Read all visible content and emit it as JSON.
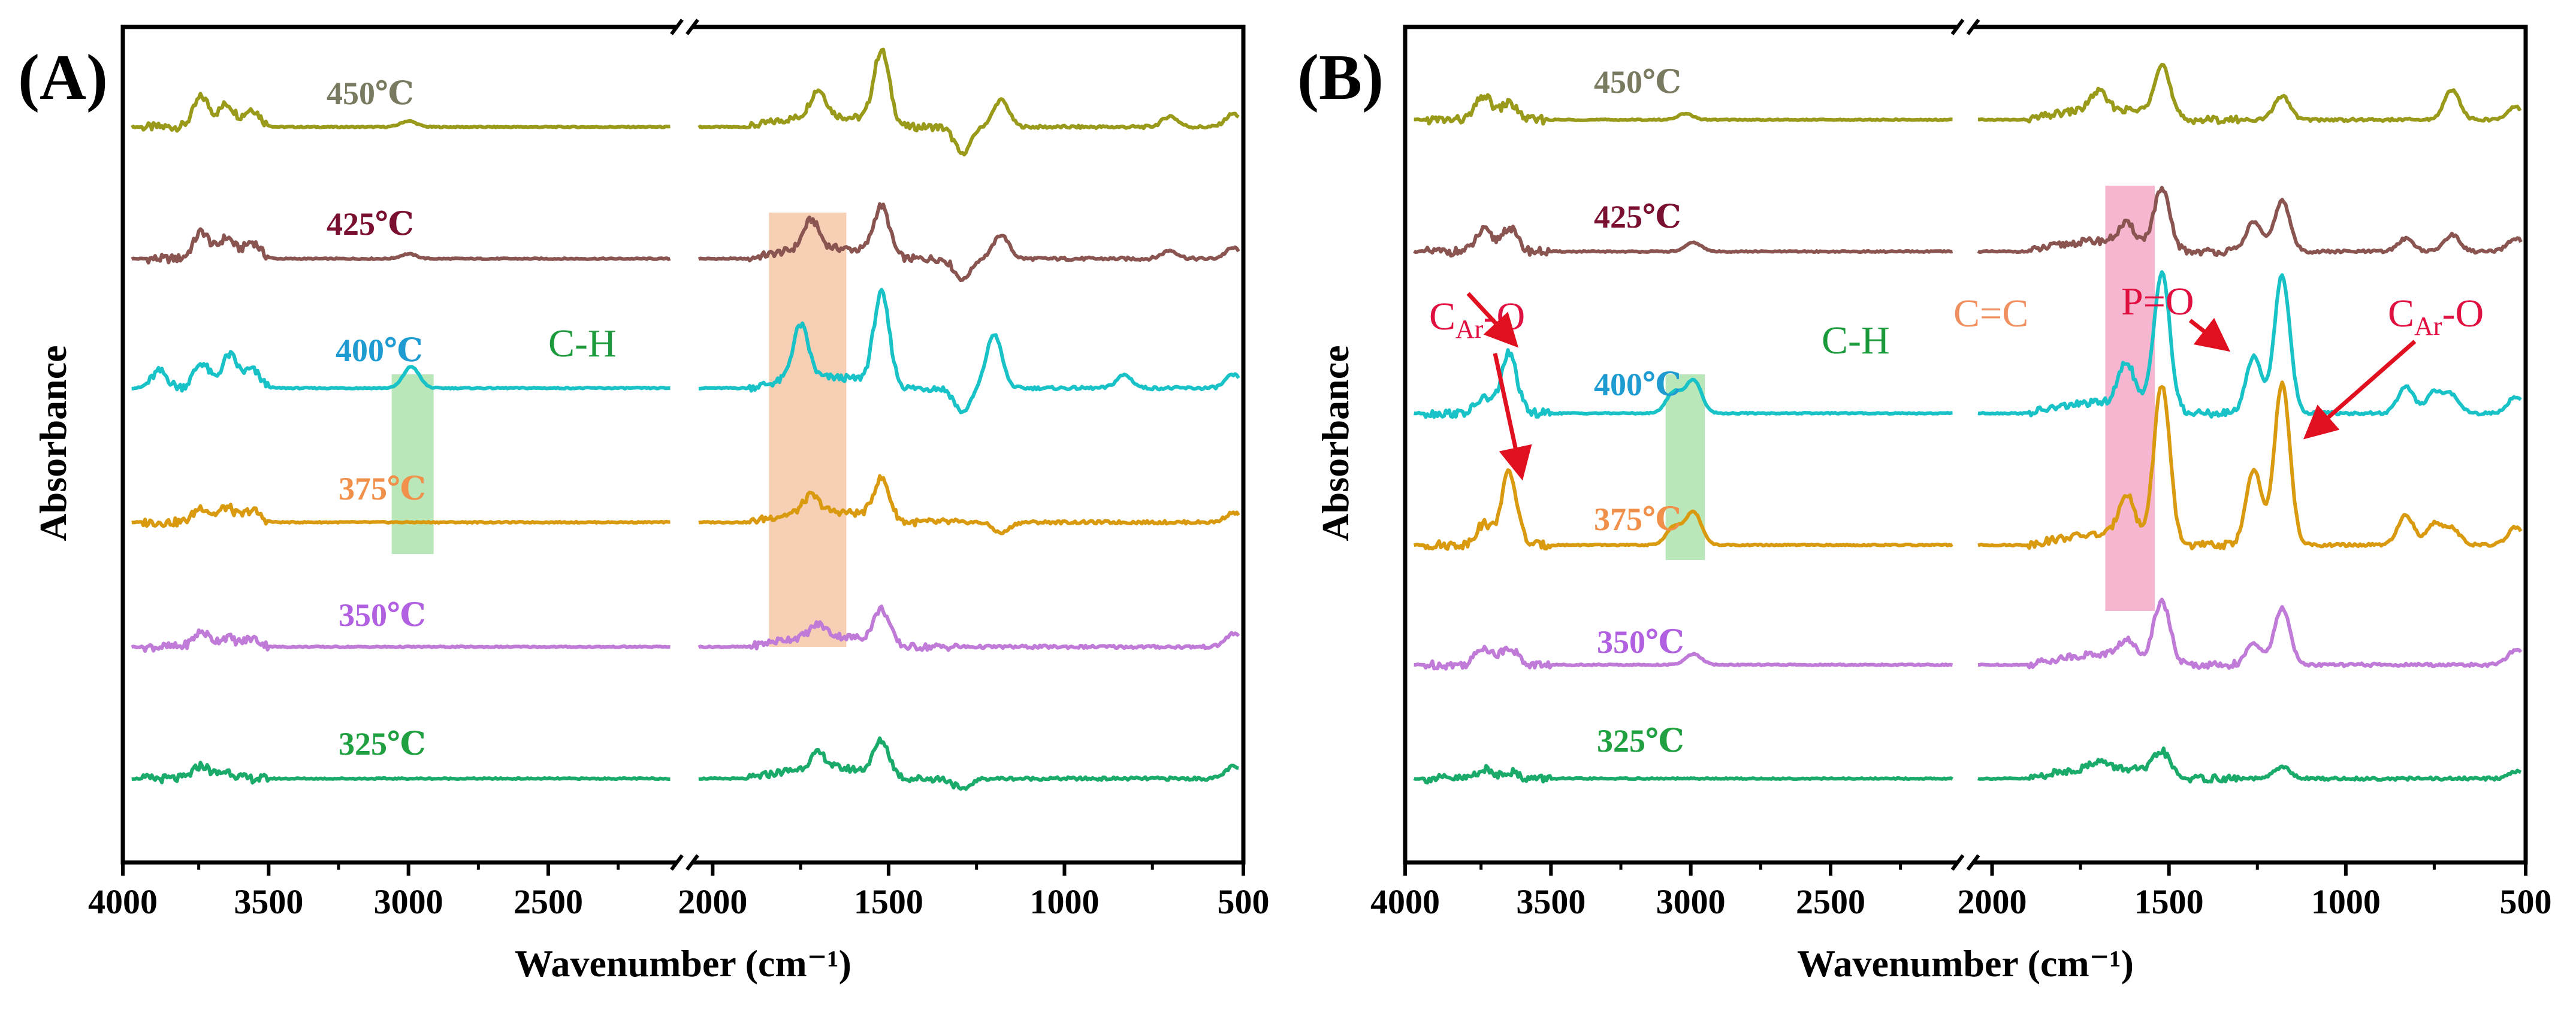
{
  "chart_data": [
    {
      "type": "line",
      "panel": "(A)",
      "xlabel": "Wavenumber (cm⁻¹)",
      "ylabel": "Absorbance",
      "x_segments": [
        [
          4000,
          2050
        ],
        [
          2050,
          500
        ]
      ],
      "xtick_labels_left": [
        "4000",
        "3500",
        "3000",
        "2500"
      ],
      "xtick_labels_right": [
        "2000",
        "1500",
        "1000",
        "500"
      ],
      "series": [
        {
          "name": "450℃",
          "color": "#9a9a1a",
          "label_color": "#7a7a60"
        },
        {
          "name": "425℃",
          "color": "#8a5550",
          "label_color": "#7a1030"
        },
        {
          "name": "400℃",
          "color": "#19c2c6",
          "label_color": "#1e9bd0"
        },
        {
          "name": "375℃",
          "color": "#d99a10",
          "label_color": "#f0904a"
        },
        {
          "name": "350℃",
          "color": "#c07ad8",
          "label_color": "#b060e0"
        },
        {
          "name": "325℃",
          "color": "#1aaa6a",
          "label_color": "#20a040"
        }
      ],
      "peaks": {
        "450℃": [
          [
            3740,
            50
          ],
          [
            3650,
            38
          ],
          [
            3560,
            30
          ],
          [
            3000,
            10
          ],
          [
            1700,
            45
          ],
          [
            1520,
            120
          ],
          [
            1290,
            -45
          ],
          [
            1180,
            45
          ],
          [
            700,
            18
          ],
          [
            520,
            22
          ]
        ],
        "425℃": [
          [
            3740,
            45
          ],
          [
            3650,
            35
          ],
          [
            3560,
            28
          ],
          [
            3000,
            8
          ],
          [
            1720,
            48
          ],
          [
            1520,
            80
          ],
          [
            1290,
            -35
          ],
          [
            1180,
            40
          ],
          [
            700,
            14
          ],
          [
            520,
            18
          ]
        ],
        "400℃": [
          [
            3890,
            28
          ],
          [
            3740,
            42
          ],
          [
            3640,
            55
          ],
          [
            3560,
            30
          ],
          [
            2990,
            36
          ],
          [
            1750,
            90
          ],
          [
            1520,
            150
          ],
          [
            1200,
            90
          ],
          [
            1290,
            -40
          ],
          [
            830,
            22
          ],
          [
            520,
            22
          ]
        ],
        "375℃": [
          [
            3740,
            25
          ],
          [
            3650,
            25
          ],
          [
            3560,
            20
          ],
          [
            1720,
            28
          ],
          [
            1520,
            65
          ],
          [
            1180,
            -18
          ],
          [
            520,
            16
          ]
        ],
        "350℃": [
          [
            3740,
            25
          ],
          [
            3650,
            16
          ],
          [
            3560,
            14
          ],
          [
            1700,
            20
          ],
          [
            1520,
            55
          ],
          [
            520,
            22
          ]
        ],
        "325℃": [
          [
            3740,
            22
          ],
          [
            3650,
            12
          ],
          [
            1700,
            25
          ],
          [
            1520,
            55
          ],
          [
            1290,
            -18
          ],
          [
            520,
            20
          ]
        ]
      },
      "annotations": [
        {
          "text": "C-H",
          "x": 2850,
          "color": "#1a9a3a"
        }
      ],
      "highlights": [
        {
          "x_range": [
            3060,
            2910
          ],
          "color": "#7fd37f",
          "label": "C-H region"
        },
        {
          "x_range": [
            1840,
            1620
          ],
          "color": "#f0a878",
          "label": "C=C region"
        }
      ]
    },
    {
      "type": "line",
      "panel": "(B)",
      "xlabel": "Wavenumber (cm⁻¹)",
      "ylabel": "Absorbance",
      "x_segments": [
        [
          4000,
          2050
        ],
        [
          2050,
          500
        ]
      ],
      "xtick_labels_left": [
        "4000",
        "3500",
        "3000",
        "2500"
      ],
      "xtick_labels_right": [
        "2000",
        "1500",
        "1000",
        "500"
      ],
      "series": [
        {
          "name": "450℃",
          "color": "#9a9a1a",
          "label_color": "#7a7a60"
        },
        {
          "name": "425℃",
          "color": "#8a5550",
          "label_color": "#7a1030"
        },
        {
          "name": "400℃",
          "color": "#19c2c6",
          "label_color": "#1e9bd0"
        },
        {
          "name": "375℃",
          "color": "#d99a10",
          "label_color": "#f0904a"
        },
        {
          "name": "350℃",
          "color": "#c07ad8",
          "label_color": "#b060e0"
        },
        {
          "name": "325℃",
          "color": "#1aaa6a",
          "label_color": "#20a040"
        }
      ],
      "peaks": {
        "450℃": [
          [
            3740,
            40
          ],
          [
            3650,
            28
          ],
          [
            3020,
            10
          ],
          [
            1700,
            30
          ],
          [
            1520,
            85
          ],
          [
            1180,
            40
          ],
          [
            700,
            50
          ],
          [
            520,
            22
          ]
        ],
        "425℃": [
          [
            3740,
            35
          ],
          [
            3650,
            40
          ],
          [
            2990,
            15
          ],
          [
            1620,
            30
          ],
          [
            1520,
            95
          ],
          [
            1260,
            50
          ],
          [
            1180,
            85
          ],
          [
            830,
            22
          ],
          [
            700,
            28
          ],
          [
            520,
            22
          ]
        ],
        "400℃": [
          [
            3740,
            25
          ],
          [
            3650,
            100
          ],
          [
            3060,
            35
          ],
          [
            2990,
            55
          ],
          [
            1620,
            70
          ],
          [
            1520,
            230
          ],
          [
            1260,
            95
          ],
          [
            1180,
            230
          ],
          [
            830,
            45
          ],
          [
            750,
            35
          ],
          [
            700,
            30
          ],
          [
            520,
            28
          ]
        ],
        "375℃": [
          [
            3740,
            35
          ],
          [
            3650,
            120
          ],
          [
            3060,
            30
          ],
          [
            2990,
            55
          ],
          [
            1620,
            70
          ],
          [
            1520,
            260
          ],
          [
            1260,
            125
          ],
          [
            1180,
            270
          ],
          [
            830,
            50
          ],
          [
            750,
            35
          ],
          [
            700,
            28
          ],
          [
            520,
            30
          ]
        ],
        "350℃": [
          [
            3740,
            30
          ],
          [
            3650,
            30
          ],
          [
            2990,
            18
          ],
          [
            1620,
            25
          ],
          [
            1520,
            100
          ],
          [
            1260,
            35
          ],
          [
            1180,
            95
          ],
          [
            520,
            25
          ]
        ],
        "325℃": [
          [
            3740,
            15
          ],
          [
            3650,
            12
          ],
          [
            1700,
            12
          ],
          [
            1520,
            38
          ],
          [
            1180,
            20
          ],
          [
            520,
            12
          ]
        ]
      },
      "annotations": [
        {
          "text": "C-H",
          "x": 2850,
          "color": "#1a9a3a"
        },
        {
          "text": "C=C",
          "x": 1800,
          "color": "#f09060"
        },
        {
          "text": "P=O",
          "x": 1350,
          "color": "#e01040"
        }
      ],
      "highlights": [
        {
          "x_range": [
            3090,
            2950
          ],
          "color": "#7fd37f",
          "label": "C-H region"
        },
        {
          "x_range": [
            1680,
            1540
          ],
          "color": "#f07aa8",
          "label": "C=C region"
        }
      ],
      "cao_label": {
        "main": "C",
        "sub": "Ar",
        "rest": "-O"
      }
    }
  ]
}
